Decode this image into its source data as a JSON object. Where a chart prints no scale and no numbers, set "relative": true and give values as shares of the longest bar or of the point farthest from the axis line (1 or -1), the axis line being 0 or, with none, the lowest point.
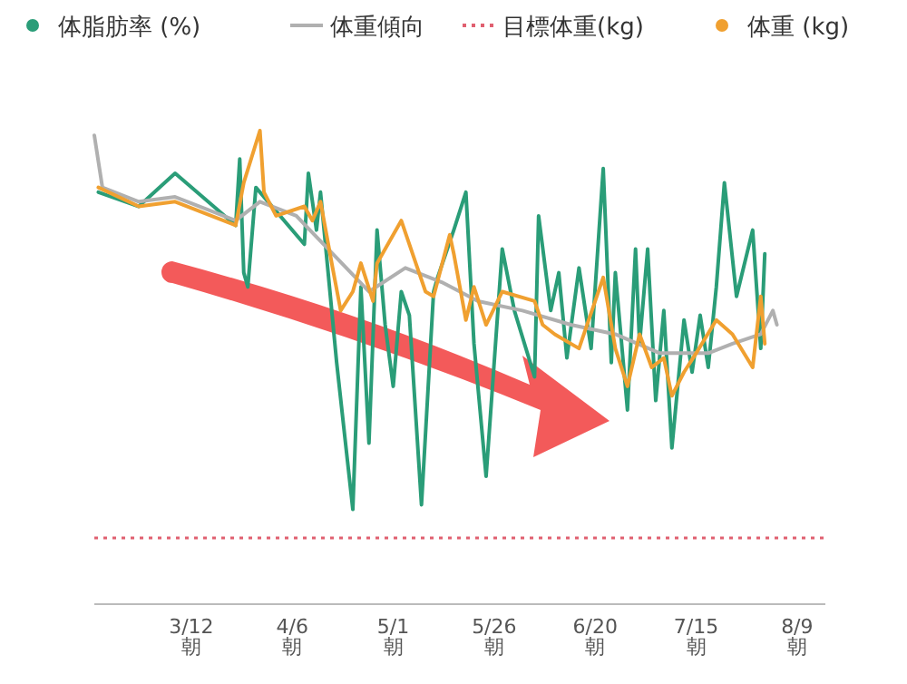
{
  "chart_data": {
    "type": "line",
    "relative": true,
    "legend": "top",
    "xlim": [
      "--02-16",
      "--08-16"
    ],
    "xticks": [
      {
        "value": "--03-12",
        "label": "3/12\n朝"
      },
      {
        "value": "--04-06",
        "label": "4/6\n朝"
      },
      {
        "value": "--05-01",
        "label": "5/1\n朝"
      },
      {
        "value": "--05-26",
        "label": "5/26\n朝"
      },
      {
        "value": "--06-20",
        "label": "6/20\n朝"
      },
      {
        "value": "--07-15",
        "label": "7/15\n朝"
      },
      {
        "value": "--08-09",
        "label": "8/9\n朝"
      }
    ],
    "series": [
      {
        "name": "体脂肪率 (%)",
        "color": "#2a9d78",
        "x": [
          "--02-17",
          "--02-27",
          "--03-08",
          "--03-23",
          "--03-24",
          "--03-25",
          "--03-26",
          "--03-28",
          "--04-09",
          "--04-10",
          "--04-12",
          "--04-13",
          "--04-17",
          "--04-21",
          "--04-23",
          "--04-25",
          "--04-27",
          "--04-29",
          "--05-01",
          "--05-03",
          "--05-05",
          "--05-08",
          "--05-11",
          "--05-12",
          "--05-16",
          "--05-19",
          "--05-21",
          "--05-24",
          "--05-28",
          "--05-31",
          "--06-05",
          "--06-06",
          "--06-09",
          "--06-11",
          "--06-13",
          "--06-16",
          "--06-19",
          "--06-22",
          "--06-24",
          "--06-25",
          "--06-28",
          "--06-30",
          "--07-01",
          "--07-03",
          "--07-05",
          "--07-07",
          "--07-09",
          "--07-12",
          "--07-14",
          "--07-16",
          "--07-18",
          "--07-20",
          "--07-22",
          "--07-25",
          "--07-29",
          "--07-31",
          "--08-01"
        ],
        "values": [
          0.87,
          0.84,
          0.91,
          0.8,
          0.94,
          0.7,
          0.67,
          0.88,
          0.76,
          0.91,
          0.79,
          0.87,
          0.51,
          0.2,
          0.67,
          0.34,
          0.79,
          0.59,
          0.46,
          0.66,
          0.61,
          0.21,
          0.66,
          0.69,
          0.79,
          0.87,
          0.55,
          0.27,
          0.75,
          0.62,
          0.48,
          0.82,
          0.62,
          0.7,
          0.52,
          0.71,
          0.54,
          0.92,
          0.51,
          0.7,
          0.41,
          0.75,
          0.55,
          0.75,
          0.43,
          0.62,
          0.33,
          0.6,
          0.49,
          0.61,
          0.5,
          0.67,
          0.89,
          0.65,
          0.79,
          0.54,
          0.74
        ]
      },
      {
        "name": "体重傾向",
        "color": "#b0b0b0",
        "x": [
          "--02-16",
          "--02-18",
          "--02-27",
          "--03-08",
          "--03-23",
          "--03-29",
          "--04-07",
          "--04-16",
          "--04-25",
          "--05-04",
          "--05-13",
          "--05-22",
          "--06-02",
          "--06-14",
          "--06-25",
          "--07-06",
          "--07-18",
          "--07-24",
          "--07-31",
          "--08-03",
          "--08-04"
        ],
        "values": [
          0.99,
          0.88,
          0.85,
          0.86,
          0.81,
          0.85,
          0.82,
          0.74,
          0.66,
          0.71,
          0.68,
          0.64,
          0.62,
          0.59,
          0.57,
          0.53,
          0.53,
          0.55,
          0.57,
          0.62,
          0.59
        ]
      },
      {
        "name": "体重 (kg)",
        "color": "#f0a030",
        "x": [
          "--02-17",
          "--02-27",
          "--03-08",
          "--03-23",
          "--03-25",
          "--03-29",
          "--03-30",
          "--04-02",
          "--04-09",
          "--04-11",
          "--04-13",
          "--04-16",
          "--04-18",
          "--04-21",
          "--04-23",
          "--04-26",
          "--04-27",
          "--05-03",
          "--05-07",
          "--05-09",
          "--05-11",
          "--05-15",
          "--05-16",
          "--05-19",
          "--05-21",
          "--05-24",
          "--05-28",
          "--06-05",
          "--06-07",
          "--06-10",
          "--06-16",
          "--06-22",
          "--06-25",
          "--06-28",
          "--07-01",
          "--07-04",
          "--07-07",
          "--07-09",
          "--07-12",
          "--07-15",
          "--07-20",
          "--07-24",
          "--07-29",
          "--07-31",
          "--08-01"
        ],
        "values": [
          0.88,
          0.84,
          0.85,
          0.8,
          0.89,
          1,
          0.87,
          0.82,
          0.84,
          0.81,
          0.85,
          0.71,
          0.62,
          0.66,
          0.72,
          0.64,
          0.72,
          0.81,
          0.71,
          0.66,
          0.65,
          0.78,
          0.74,
          0.6,
          0.67,
          0.59,
          0.66,
          0.64,
          0.59,
          0.57,
          0.54,
          0.69,
          0.54,
          0.46,
          0.57,
          0.5,
          0.52,
          0.44,
          0.49,
          0.53,
          0.6,
          0.57,
          0.5,
          0.65,
          0.55
        ]
      }
    ],
    "ref_lines": [
      {
        "axis": "y",
        "value": 0.14,
        "label": "目標体重(kg)",
        "color": "#e06070",
        "line_style": "dotted"
      }
    ]
  }
}
